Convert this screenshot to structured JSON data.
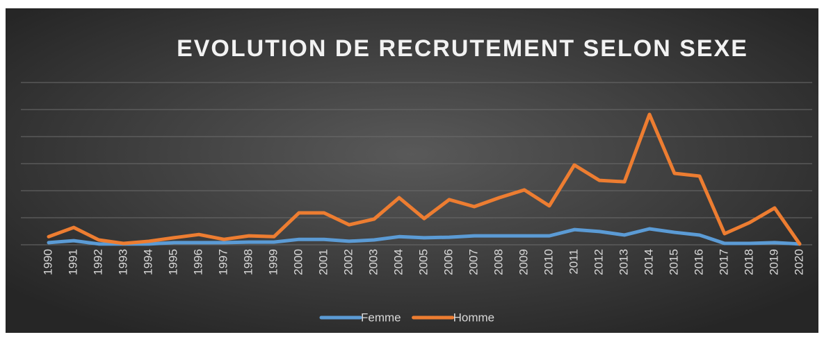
{
  "chart_data": {
    "type": "line",
    "title": "EVOLUTION DE RECRUTEMENT SELON SEXE",
    "categories": [
      "1990",
      "1991",
      "1992",
      "1993",
      "1994",
      "1995",
      "1996",
      "1997",
      "1998",
      "1999",
      "2000",
      "2001",
      "2002",
      "2003",
      "2004",
      "2005",
      "2006",
      "2007",
      "2008",
      "2009",
      "2010",
      "2011",
      "2012",
      "2013",
      "2014",
      "2015",
      "2016",
      "2017",
      "2018",
      "2019",
      "2020"
    ],
    "series": [
      {
        "name": "Femme",
        "color": "#5b9bd5",
        "values": [
          0.08,
          0.15,
          0.03,
          0.03,
          0.03,
          0.08,
          0.08,
          0.08,
          0.1,
          0.1,
          0.2,
          0.2,
          0.13,
          0.18,
          0.3,
          0.26,
          0.28,
          0.33,
          0.33,
          0.33,
          0.33,
          0.56,
          0.49,
          0.36,
          0.59,
          0.46,
          0.36,
          0.05,
          0.05,
          0.08,
          0.03
        ]
      },
      {
        "name": "Homme",
        "color": "#ed7d31",
        "values": [
          0.3,
          0.64,
          0.18,
          0.05,
          0.13,
          0.26,
          0.38,
          0.2,
          0.33,
          0.3,
          1.18,
          1.18,
          0.74,
          0.95,
          1.74,
          0.97,
          1.67,
          1.41,
          1.74,
          2.03,
          1.44,
          2.95,
          2.38,
          2.33,
          4.82,
          2.64,
          2.54,
          0.41,
          0.82,
          1.36,
          0.03
        ]
      }
    ],
    "ylim": [
      0,
      6
    ],
    "yticks": [
      0,
      1,
      2,
      3,
      4,
      5,
      6
    ],
    "grid": true,
    "legend": "bottom"
  }
}
